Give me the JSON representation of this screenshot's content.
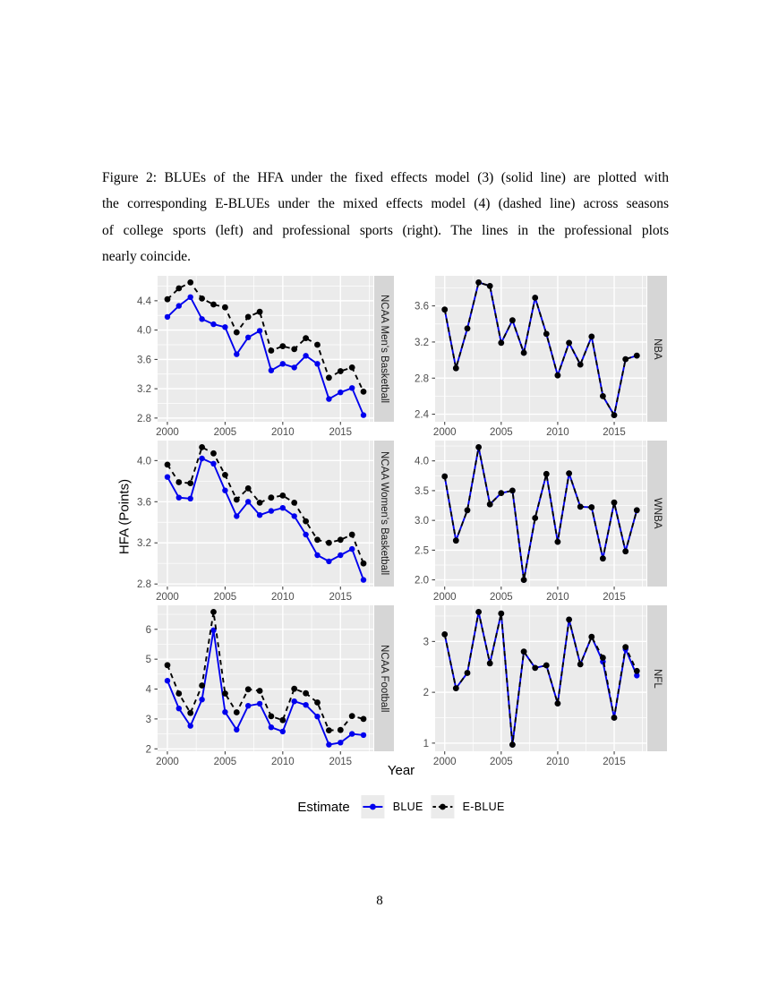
{
  "page": {
    "number": "8"
  },
  "caption": {
    "lines": [
      "Figure 2: BLUEs of the HFA under the fixed effects model (3) (solid line) are plotted with",
      "the corresponding E-BLUEs under the mixed effects model (4) (dashed line) across seasons",
      "of college sports (left) and professional sports (right). The lines in the professional plots",
      "nearly coincide."
    ]
  },
  "figure": {
    "xlabel": "Year",
    "ylabel": "HFA (Points)",
    "legend": {
      "title": "Estimate",
      "entries": [
        {
          "label": "BLUE",
          "color": "#0000EE",
          "dashed": false
        },
        {
          "label": "E-BLUE",
          "color": "#000000",
          "dashed": true
        }
      ]
    },
    "colors": {
      "panel_background": "#EBEBEB",
      "strip_background": "#D6D6D6",
      "gridline": "#FFFFFF",
      "tick_text": "#4D4D4D",
      "blue_series": "#0000EE",
      "black_series": "#000000"
    }
  },
  "chart_data": [
    {
      "type": "line",
      "facet": "NCAA Men's Basketball",
      "x": [
        2000,
        2001,
        2002,
        2003,
        2004,
        2005,
        2006,
        2007,
        2008,
        2009,
        2010,
        2011,
        2012,
        2013,
        2014,
        2015,
        2016,
        2017
      ],
      "xticks": [
        "2000",
        "2005",
        "2010",
        "2015"
      ],
      "yticks": [
        "2.8",
        "3.2",
        "3.6",
        "4.0",
        "4.4"
      ],
      "series": [
        {
          "name": "BLUE",
          "color": "#0000EE",
          "dashed": false,
          "values": [
            4.18,
            4.33,
            4.45,
            4.15,
            4.08,
            4.04,
            3.67,
            3.9,
            3.99,
            3.45,
            3.54,
            3.49,
            3.65,
            3.54,
            3.06,
            3.15,
            3.21,
            2.84
          ]
        },
        {
          "name": "E-BLUE",
          "color": "#000000",
          "dashed": true,
          "values": [
            4.42,
            4.57,
            4.65,
            4.43,
            4.35,
            4.31,
            3.97,
            4.18,
            4.25,
            3.72,
            3.78,
            3.74,
            3.89,
            3.8,
            3.35,
            3.44,
            3.49,
            3.16
          ]
        }
      ]
    },
    {
      "type": "line",
      "facet": "NBA",
      "x": [
        2000,
        2001,
        2002,
        2003,
        2004,
        2005,
        2006,
        2007,
        2008,
        2009,
        2010,
        2011,
        2012,
        2013,
        2014,
        2015,
        2016,
        2017
      ],
      "xticks": [
        "2000",
        "2005",
        "2010",
        "2015"
      ],
      "yticks": [
        "2.4",
        "2.8",
        "3.2",
        "3.6"
      ],
      "series": [
        {
          "name": "BLUE",
          "color": "#0000EE",
          "dashed": false,
          "values": [
            3.56,
            2.91,
            3.35,
            3.86,
            3.82,
            3.19,
            3.44,
            3.08,
            3.69,
            3.29,
            2.83,
            3.19,
            2.95,
            3.26,
            2.6,
            2.39,
            3.01,
            3.05
          ]
        },
        {
          "name": "E-BLUE",
          "color": "#000000",
          "dashed": true,
          "values": [
            3.56,
            2.91,
            3.35,
            3.86,
            3.82,
            3.19,
            3.44,
            3.08,
            3.69,
            3.29,
            2.83,
            3.19,
            2.95,
            3.26,
            2.6,
            2.39,
            3.01,
            3.05
          ]
        }
      ]
    },
    {
      "type": "line",
      "facet": "NCAA Women's Basketball",
      "x": [
        2000,
        2001,
        2002,
        2003,
        2004,
        2005,
        2006,
        2007,
        2008,
        2009,
        2010,
        2011,
        2012,
        2013,
        2014,
        2015,
        2016,
        2017
      ],
      "xticks": [
        "2000",
        "2005",
        "2010",
        "2015"
      ],
      "yticks": [
        "2.8",
        "3.2",
        "3.6",
        "4.0"
      ],
      "series": [
        {
          "name": "BLUE",
          "color": "#0000EE",
          "dashed": false,
          "values": [
            3.84,
            3.64,
            3.63,
            4.02,
            3.97,
            3.71,
            3.46,
            3.6,
            3.47,
            3.51,
            3.54,
            3.46,
            3.28,
            3.08,
            3.02,
            3.08,
            3.14,
            2.84
          ]
        },
        {
          "name": "E-BLUE",
          "color": "#000000",
          "dashed": true,
          "values": [
            3.96,
            3.79,
            3.78,
            4.13,
            4.07,
            3.86,
            3.62,
            3.73,
            3.59,
            3.64,
            3.66,
            3.59,
            3.41,
            3.23,
            3.2,
            3.23,
            3.28,
            3.0
          ]
        }
      ]
    },
    {
      "type": "line",
      "facet": "WNBA",
      "x": [
        2000,
        2001,
        2002,
        2003,
        2004,
        2005,
        2006,
        2007,
        2008,
        2009,
        2010,
        2011,
        2012,
        2013,
        2014,
        2015,
        2016,
        2017
      ],
      "xticks": [
        "2000",
        "2005",
        "2010",
        "2015"
      ],
      "yticks": [
        "2.0",
        "2.5",
        "3.0",
        "3.5",
        "4.0"
      ],
      "series": [
        {
          "name": "BLUE",
          "color": "#0000EE",
          "dashed": false,
          "values": [
            3.74,
            2.66,
            3.17,
            4.23,
            3.27,
            3.46,
            3.5,
            2.0,
            3.04,
            3.78,
            2.64,
            3.79,
            3.23,
            3.22,
            2.36,
            3.3,
            2.48,
            3.17
          ]
        },
        {
          "name": "E-BLUE",
          "color": "#000000",
          "dashed": true,
          "values": [
            3.74,
            2.66,
            3.17,
            4.23,
            3.27,
            3.46,
            3.5,
            2.0,
            3.04,
            3.78,
            2.64,
            3.79,
            3.23,
            3.22,
            2.36,
            3.3,
            2.48,
            3.17
          ]
        }
      ]
    },
    {
      "type": "line",
      "facet": "NCAA Football",
      "x": [
        2000,
        2001,
        2002,
        2003,
        2004,
        2005,
        2006,
        2007,
        2008,
        2009,
        2010,
        2011,
        2012,
        2013,
        2014,
        2015,
        2016,
        2017
      ],
      "xticks": [
        "2000",
        "2005",
        "2010",
        "2015"
      ],
      "yticks": [
        "2",
        "3",
        "4",
        "5",
        "6"
      ],
      "series": [
        {
          "name": "BLUE",
          "color": "#0000EE",
          "dashed": false,
          "values": [
            4.28,
            3.35,
            2.77,
            3.65,
            5.97,
            3.23,
            2.64,
            3.44,
            3.51,
            2.72,
            2.58,
            3.59,
            3.47,
            3.08,
            2.14,
            2.21,
            2.5,
            2.46
          ]
        },
        {
          "name": "E-BLUE",
          "color": "#000000",
          "dashed": true,
          "values": [
            4.8,
            3.85,
            3.2,
            4.12,
            6.58,
            3.85,
            3.22,
            3.99,
            3.94,
            3.09,
            2.96,
            4.01,
            3.86,
            3.55,
            2.62,
            2.63,
            3.1,
            3.0
          ]
        }
      ]
    },
    {
      "type": "line",
      "facet": "NFL",
      "x": [
        2000,
        2001,
        2002,
        2003,
        2004,
        2005,
        2006,
        2007,
        2008,
        2009,
        2010,
        2011,
        2012,
        2013,
        2014,
        2015,
        2016,
        2017
      ],
      "xticks": [
        "2000",
        "2005",
        "2010",
        "2015"
      ],
      "yticks": [
        "1",
        "2",
        "3"
      ],
      "series": [
        {
          "name": "BLUE",
          "color": "#0000EE",
          "dashed": false,
          "values": [
            3.14,
            2.08,
            2.38,
            3.58,
            2.57,
            3.55,
            0.97,
            2.8,
            2.48,
            2.53,
            1.78,
            3.43,
            2.55,
            3.09,
            2.6,
            1.5,
            2.85,
            2.33
          ]
        },
        {
          "name": "E-BLUE",
          "color": "#000000",
          "dashed": true,
          "values": [
            3.14,
            2.08,
            2.38,
            3.58,
            2.57,
            3.55,
            0.97,
            2.8,
            2.48,
            2.53,
            1.78,
            3.43,
            2.55,
            3.09,
            2.68,
            1.5,
            2.89,
            2.42
          ]
        }
      ]
    }
  ]
}
